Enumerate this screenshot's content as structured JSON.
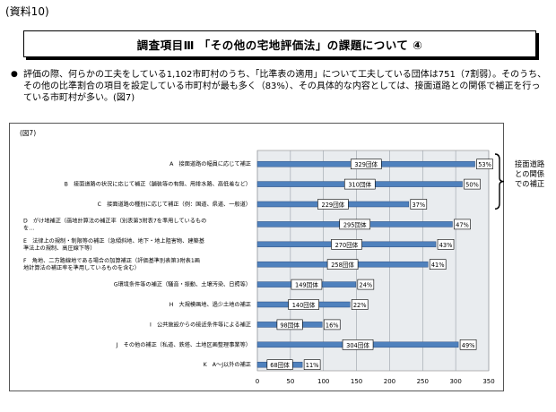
{
  "document": {
    "reference_label": "(資料10)",
    "title": "調査項目Ⅲ 「その他の宅地評価法」の課題について ④",
    "bullet": "●",
    "summary": "評価の際、何らかの工夫をしている1,102市町村のうち、「比準表の適用」について工夫している団体は751（7割弱）。そのうち、その他の比準割合の項目を設定している市町村が最も多く（83%）、その具体的な内容としては、接面道路との関係で補正を行っている市町村が多い。(図7)"
  },
  "chart_data": {
    "type": "bar",
    "orientation": "horizontal",
    "figure_label": "(図7)",
    "categories": [
      [
        "A　接面道路の幅員に応じて補正"
      ],
      [
        "B　接面道路の状況に応じて補正（舗装等の有無、用排水路、高低差など）"
      ],
      [
        "C　接面道路の種別に応じて補正（例：国道、県道、一般道）"
      ],
      [
        "D　がけ地補正（画地計算法の補正率（別表第3附表7を準用しているもの",
        "を…"
      ],
      [
        "E　法律上の規制・制限等の補正（急傾斜地、地下・地上阻害物、建築基",
        "準法上の規制、高圧線下等）"
      ],
      [
        "F　角地、二方路線地である場合の加算補正（評価基準別表第3附表1画",
        "地計算法の補正率を準用しているものを含む）"
      ],
      [
        "G環境条件等の補正（騒音・振動、土壌汚染、日照等）"
      ],
      [
        "H　大規模画地、過少土地の補正"
      ],
      [
        "I　公共施設からの接近条件等による補正"
      ],
      [
        "J　その他の補正（私道、鉄塔、土地区画整理事業等）"
      ],
      [
        "K　A～J以外の補正"
      ]
    ],
    "values": [
      329,
      310,
      229,
      295,
      270,
      258,
      149,
      140,
      98,
      304,
      68
    ],
    "value_labels": [
      "329団体",
      "310団体",
      "229団体",
      "295団体",
      "270団体",
      "258団体",
      "149団体",
      "140団体",
      "98団体",
      "304団体",
      "68団体"
    ],
    "percent_labels": [
      "53%",
      "50%",
      "37%",
      "47%",
      "43%",
      "41%",
      "24%",
      "22%",
      "16%",
      "49%",
      "11%"
    ],
    "xlim": [
      0,
      350
    ],
    "xticks": [
      0,
      50,
      100,
      150,
      200,
      250,
      300,
      350
    ],
    "grid": true,
    "bar_color": "#4f81bd",
    "grid_color": "#9aa0a8",
    "bracket_label": [
      "接面道路",
      "との関係",
      "での補正"
    ],
    "bracket_span": [
      "A",
      "C"
    ]
  }
}
